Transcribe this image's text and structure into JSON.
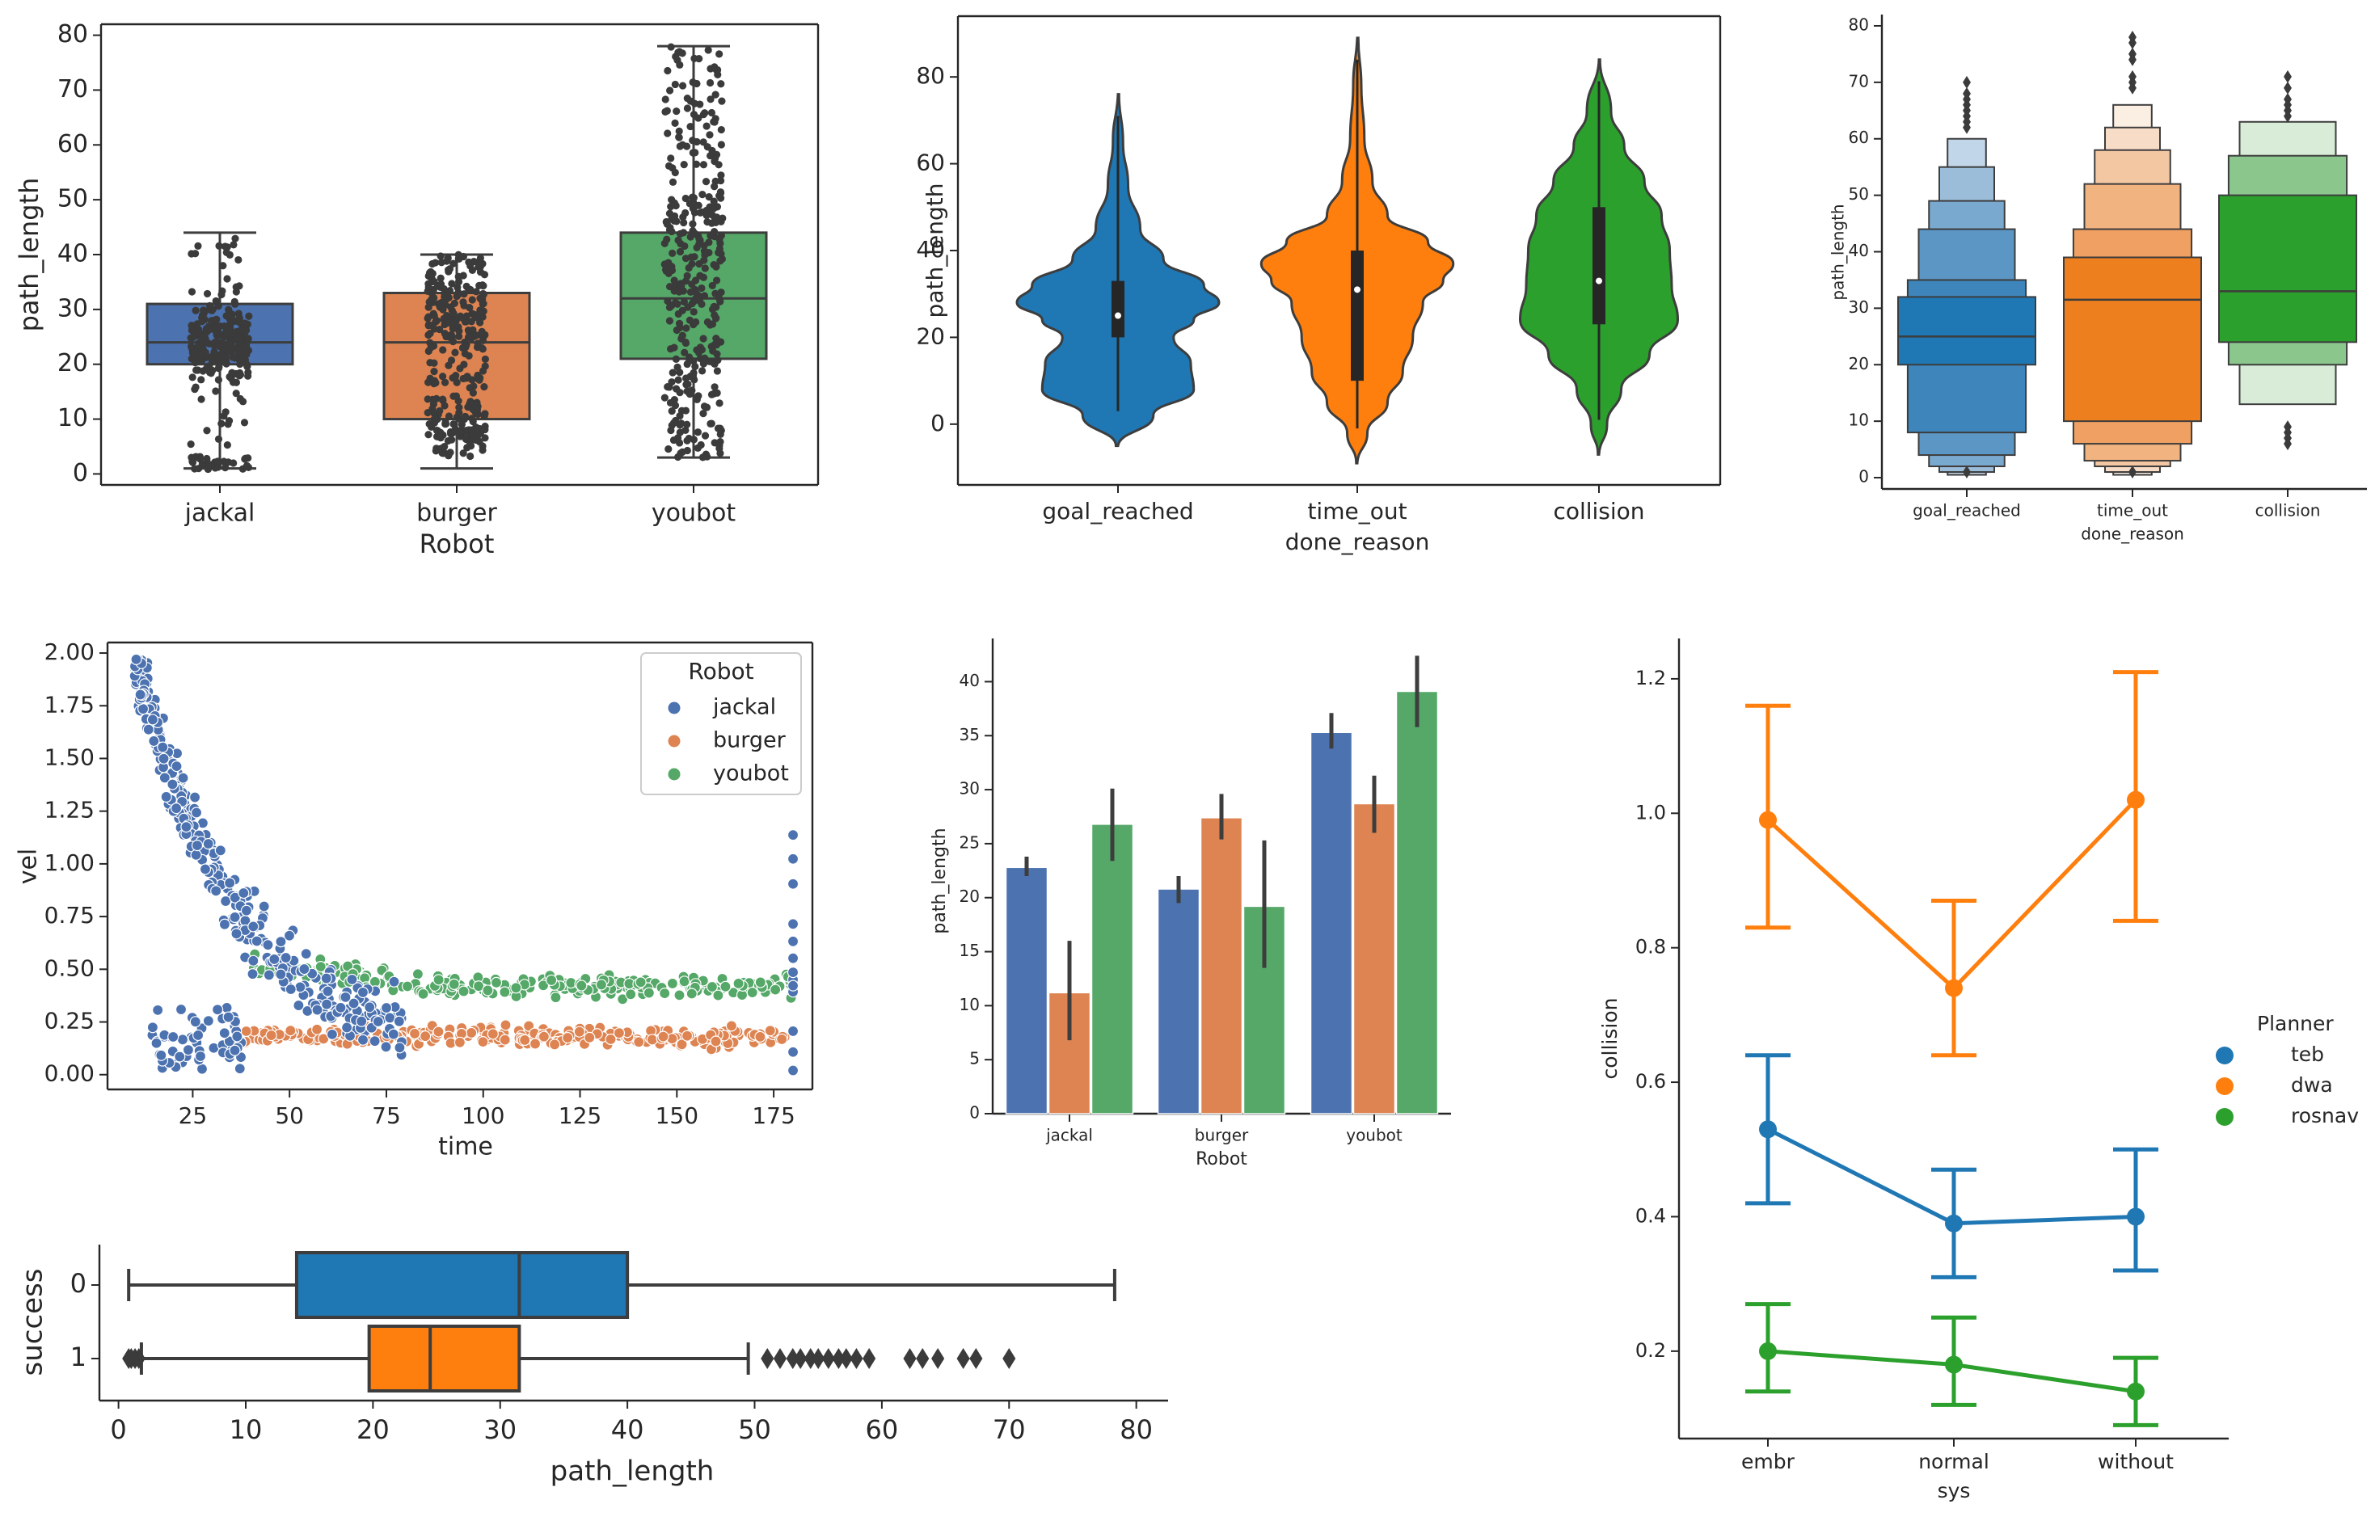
{
  "colors": {
    "blue": "#4c72b0",
    "orange": "#dd8452",
    "green": "#55a868",
    "tab_blue": "#1f77b4",
    "tab_orange": "#ff7f0e",
    "tab_green": "#2ca02c",
    "dark": "#3d3d3d"
  },
  "chart_data": [
    {
      "id": "boxplot_robot",
      "type": "box",
      "xlabel": "Robot",
      "ylabel": "path_length",
      "ylim": [
        -2,
        82
      ],
      "yticks": [
        0,
        10,
        20,
        30,
        40,
        50,
        60,
        70,
        80
      ],
      "categories": [
        "jackal",
        "burger",
        "youbot"
      ],
      "boxes": [
        {
          "q1": 20,
          "median": 24,
          "q3": 31,
          "whislo": 1,
          "whishi": 44
        },
        {
          "q1": 10,
          "median": 24,
          "q3": 33,
          "whislo": 1,
          "whishi": 40
        },
        {
          "q1": 21,
          "median": 32,
          "q3": 44,
          "whislo": 3,
          "whishi": 78
        }
      ],
      "strip_note": "jittered raw points overlaid"
    },
    {
      "id": "violin_done_reason",
      "type": "violin",
      "xlabel": "done_reason",
      "ylabel": "path_length",
      "ylim": [
        -14,
        94
      ],
      "yticks": [
        0,
        20,
        40,
        60,
        80
      ],
      "categories": [
        "goal_reached",
        "time_out",
        "collision"
      ],
      "violins": [
        {
          "min": -5,
          "max": 76,
          "q1": 20,
          "median": 25,
          "q3": 33,
          "widths": [
            [
              -5,
              0.02
            ],
            [
              2,
              0.35
            ],
            [
              8,
              0.75
            ],
            [
              14,
              0.72
            ],
            [
              20,
              0.55
            ],
            [
              24,
              0.75
            ],
            [
              28,
              1.0
            ],
            [
              32,
              0.85
            ],
            [
              38,
              0.45
            ],
            [
              45,
              0.22
            ],
            [
              55,
              0.1
            ],
            [
              65,
              0.05
            ],
            [
              76,
              0.01
            ]
          ]
        },
        {
          "min": -9,
          "max": 89,
          "q1": 10,
          "median": 31,
          "q3": 40,
          "widths": [
            [
              -9,
              0.01
            ],
            [
              -2,
              0.1
            ],
            [
              5,
              0.3
            ],
            [
              12,
              0.45
            ],
            [
              20,
              0.55
            ],
            [
              28,
              0.65
            ],
            [
              33,
              0.85
            ],
            [
              37,
              0.95
            ],
            [
              42,
              0.7
            ],
            [
              48,
              0.3
            ],
            [
              56,
              0.15
            ],
            [
              66,
              0.07
            ],
            [
              78,
              0.04
            ],
            [
              89,
              0.01
            ]
          ]
        },
        {
          "min": -7,
          "max": 84,
          "q1": 23,
          "median": 33,
          "q3": 50,
          "widths": [
            [
              -7,
              0.01
            ],
            [
              0,
              0.08
            ],
            [
              8,
              0.22
            ],
            [
              16,
              0.5
            ],
            [
              24,
              0.78
            ],
            [
              32,
              0.72
            ],
            [
              40,
              0.7
            ],
            [
              48,
              0.62
            ],
            [
              56,
              0.45
            ],
            [
              64,
              0.25
            ],
            [
              72,
              0.12
            ],
            [
              84,
              0.01
            ]
          ]
        }
      ]
    },
    {
      "id": "boxen_done_reason",
      "type": "boxen",
      "xlabel": "done_reason",
      "ylabel": "path_length",
      "ylim": [
        -2,
        82
      ],
      "yticks": [
        0,
        10,
        20,
        30,
        40,
        50,
        60,
        70,
        80
      ],
      "categories": [
        "goal_reached",
        "time_out",
        "collision"
      ],
      "levels": [
        {
          "median": 25,
          "boxes": [
            [
              20,
              32,
              1.0
            ],
            [
              8,
              35,
              0.86
            ],
            [
              4,
              44,
              0.7
            ],
            [
              2,
              49,
              0.55
            ],
            [
              1,
              55,
              0.4
            ],
            [
              0.5,
              60,
              0.28
            ]
          ],
          "outliers": [
            62,
            63,
            64,
            65,
            66,
            67,
            68,
            70,
            1
          ]
        },
        {
          "median": 31.5,
          "boxes": [
            [
              10,
              39,
              1.0
            ],
            [
              6,
              44,
              0.86
            ],
            [
              3,
              52,
              0.7
            ],
            [
              2,
              58,
              0.55
            ],
            [
              1,
              62,
              0.4
            ],
            [
              0.5,
              66,
              0.28
            ]
          ],
          "outliers": [
            69,
            70,
            71,
            74,
            75,
            77,
            78,
            1
          ]
        },
        {
          "median": 33,
          "boxes": [
            [
              24,
              50,
              1.0
            ],
            [
              20,
              57,
              0.86
            ],
            [
              13,
              63,
              0.7
            ]
          ],
          "outliers": [
            64,
            65,
            66,
            67,
            69,
            71,
            9,
            8,
            7,
            6
          ]
        }
      ]
    },
    {
      "id": "scatter_vel",
      "type": "scatter",
      "xlabel": "time",
      "ylabel": "vel",
      "xlim": [
        3,
        185
      ],
      "ylim": [
        -0.07,
        2.05
      ],
      "xticks": [
        25,
        50,
        75,
        100,
        125,
        150,
        175
      ],
      "yticks": [
        "0.00",
        "0.25",
        "0.50",
        "0.75",
        "1.00",
        "1.25",
        "1.50",
        "1.75",
        "2.00"
      ],
      "legend": {
        "title": "Robot",
        "placement": "upper-right",
        "entries": [
          "jackal",
          "burger",
          "youbot"
        ]
      },
      "series": [
        {
          "name": "jackal",
          "description": "decay from 1.95 at t=10 to ~0.2 near t=80, cluster 0.0-0.3 at t=15-35, outliers at t=180 up to 1.15"
        },
        {
          "name": "burger",
          "description": "flat band 0.1-0.25 from t=40 to t=180"
        },
        {
          "name": "youbot",
          "description": "band 0.5 at t=40 decaying to ~0.42 flat until t=180"
        }
      ]
    },
    {
      "id": "bar_robot",
      "type": "bar",
      "xlabel": "Robot",
      "ylabel": "path_length",
      "ylim": [
        0,
        44
      ],
      "yticks": [
        0,
        5,
        10,
        15,
        20,
        25,
        30,
        35,
        40
      ],
      "categories": [
        "jackal",
        "burger",
        "youbot"
      ],
      "series": [
        {
          "name": "blue",
          "values": [
            22.8,
            20.8,
            35.3
          ],
          "err": [
            [
              22.0,
              23.8
            ],
            [
              19.5,
              22.0
            ],
            [
              33.8,
              37.1
            ]
          ]
        },
        {
          "name": "orange",
          "values": [
            11.2,
            27.4,
            28.7
          ],
          "err": [
            [
              6.8,
              16.0
            ],
            [
              25.4,
              29.6
            ],
            [
              26.0,
              31.3
            ]
          ]
        },
        {
          "name": "green",
          "values": [
            26.8,
            19.2,
            39.1
          ],
          "err": [
            [
              23.4,
              30.1
            ],
            [
              13.5,
              25.3
            ],
            [
              35.8,
              42.4
            ]
          ]
        }
      ]
    },
    {
      "id": "point_collision",
      "type": "line",
      "xlabel": "sys",
      "ylabel": "collision",
      "ylim": [
        0.07,
        1.26
      ],
      "yticks": [
        "0.2",
        "0.4",
        "0.6",
        "0.8",
        "1.0",
        "1.2"
      ],
      "categories": [
        "embr",
        "normal",
        "without"
      ],
      "legend": {
        "title": "Planner",
        "placement": "right",
        "entries": [
          "teb",
          "dwa",
          "rosnav"
        ]
      },
      "series": [
        {
          "name": "teb",
          "values": [
            0.53,
            0.39,
            0.4
          ],
          "err": [
            [
              0.42,
              0.64
            ],
            [
              0.31,
              0.47
            ],
            [
              0.32,
              0.5
            ]
          ]
        },
        {
          "name": "dwa",
          "values": [
            0.99,
            0.74,
            1.02
          ],
          "err": [
            [
              0.83,
              1.16
            ],
            [
              0.64,
              0.87
            ],
            [
              0.84,
              1.21
            ]
          ]
        },
        {
          "name": "rosnav",
          "values": [
            0.2,
            0.18,
            0.14
          ],
          "err": [
            [
              0.14,
              0.27
            ],
            [
              0.12,
              0.25
            ],
            [
              0.09,
              0.19
            ]
          ]
        }
      ]
    },
    {
      "id": "hbox_success",
      "type": "box",
      "orientation": "horizontal",
      "xlabel": "path_length",
      "ylabel": "success",
      "xlim": [
        -1.5,
        82.5
      ],
      "xticks": [
        0,
        10,
        20,
        30,
        40,
        50,
        60,
        70,
        80
      ],
      "categories": [
        "0",
        "1"
      ],
      "boxes": [
        {
          "q1": 14,
          "median": 31.5,
          "q3": 40,
          "whislo": 0.8,
          "whishi": 78.3,
          "outliers": []
        },
        {
          "q1": 19.7,
          "median": 24.5,
          "q3": 31.5,
          "whislo": 1.8,
          "whishi": 49.5,
          "outliers": [
            0.8,
            1.0,
            1.3,
            1.6,
            51,
            52,
            53,
            53.6,
            54.4,
            55,
            55.8,
            56.6,
            57.2,
            58,
            59,
            62.2,
            63.2,
            64.4,
            66.4,
            67.4,
            70
          ]
        }
      ]
    }
  ]
}
